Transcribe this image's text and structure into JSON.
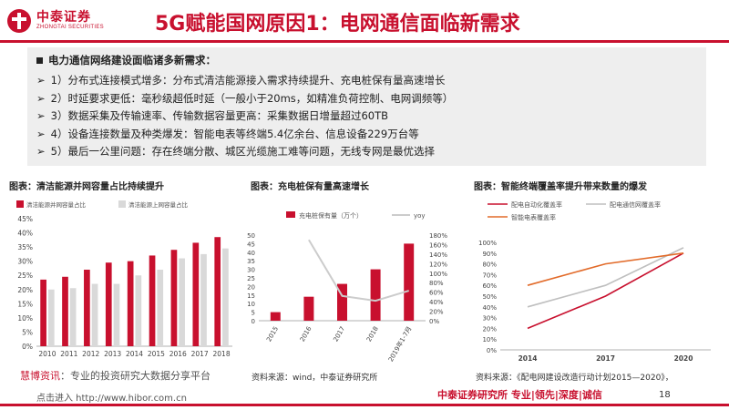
{
  "header": {
    "logo_cn": "中泰证券",
    "logo_en": "ZHONGTAI SECURITIES",
    "title": "5G赋能国网原因1：电网通信面临新需求"
  },
  "bullets": {
    "heading": "电力通信网络建设面临诸多新需求：",
    "items": [
      "1）分布式连接模式增多：分布式清洁能源接入需求持续提升、充电桩保有量高速增长",
      "2）时延要求更低：毫秒级超低时延（一般小于20ms，如精准负荷控制、电网调频等）",
      "3）数据采集及传输速率、传输数据容量更高：采集数据日增量超过60TB",
      "4）设备连接数量及种类爆发：智能电表等终端5.4亿余台、信息设备229万台等",
      "5）最后一公里问题：存在终端分散、城区光缆施工难等问题，无线专网是最优选择"
    ]
  },
  "charts": {
    "chart1_title": "图表：清洁能源并网容量占比持续提升",
    "chart2_title": "图表：充电桩保有量高速增长",
    "chart3_title": "图表：智能终端覆盖率提升带来数量的爆发"
  },
  "chart_data": [
    {
      "type": "bar",
      "series": [
        {
          "name": "清洁能源并网容量占比",
          "values": [
            23.5,
            24.5,
            27,
            29.5,
            30,
            32,
            34,
            36.5,
            38.5
          ],
          "color": "#c8102e"
        },
        {
          "name": "清洁能源上网容量占比",
          "values": [
            20,
            20.5,
            22,
            22,
            25,
            27,
            31,
            32.5,
            34.5
          ],
          "color": "#d9d9d9"
        }
      ],
      "categories": [
        "2010",
        "2011",
        "2012",
        "2013",
        "2014",
        "2015",
        "2016",
        "2017",
        "2018"
      ],
      "ylim": [
        0,
        45
      ],
      "yticks": [
        "0%",
        "5%",
        "10%",
        "15%",
        "20%",
        "25%",
        "30%",
        "35%",
        "40%",
        "45%"
      ],
      "legend_position": "top"
    },
    {
      "type": "bar",
      "categories": [
        "2015",
        "2016",
        "2017",
        "2018",
        "2019年1-7月"
      ],
      "series": [
        {
          "name": "充电桩保有量（万个）",
          "values": [
            5,
            14,
            21.5,
            30,
            45
          ],
          "color": "#c8102e"
        },
        {
          "name": "yoy",
          "type": "line",
          "axis": "right",
          "values": [
            null,
            170,
            52,
            42,
            63
          ],
          "color": "#cccccc"
        }
      ],
      "ylim": [
        0,
        50
      ],
      "yticks_left": [
        "0",
        "5",
        "10",
        "15",
        "20",
        "25",
        "30",
        "35",
        "40",
        "45",
        "50"
      ],
      "ylim_right": [
        0,
        180
      ],
      "yticks_right": [
        "0%",
        "20%",
        "40%",
        "60%",
        "80%",
        "100%",
        "120%",
        "140%",
        "160%",
        "180%"
      ],
      "legend_position": "top"
    },
    {
      "type": "line",
      "categories": [
        "2014",
        "2017",
        "2020"
      ],
      "series": [
        {
          "name": "配电自动化覆盖率",
          "values": [
            20,
            50,
            90
          ],
          "color": "#c8102e"
        },
        {
          "name": "配电通信网覆盖率",
          "values": [
            40,
            60,
            95
          ],
          "color": "#bfbfbf"
        },
        {
          "name": "智能电表覆盖率",
          "values": [
            60,
            80,
            90
          ],
          "color": "#e26b2a"
        }
      ],
      "ylim": [
        0,
        100
      ],
      "yticks": [
        "0%",
        "10%",
        "20%",
        "30%",
        "40%",
        "50%",
        "60%",
        "70%",
        "80%",
        "90%",
        "100%"
      ],
      "legend_position": "top"
    }
  ],
  "footer": {
    "source2": "资料来源：wind，中泰证券研究所",
    "source3": "资料来源：《配电网建设改造行动计划2015—2020》，",
    "watermark_red": "慧博资讯",
    "watermark_rest": "：专业的投资研究大数据分享平台",
    "watermark2": "点击进入 http://www.hibor.com.cn",
    "slogan": "中泰证券研究所  专业|领先|深度|诚信",
    "page": "18"
  }
}
